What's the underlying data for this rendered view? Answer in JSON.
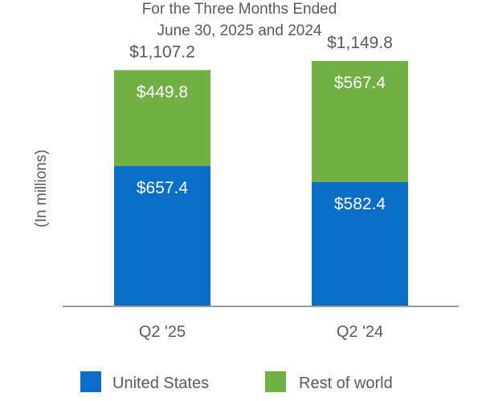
{
  "chart_data": {
    "type": "bar",
    "stacked": true,
    "title_lines": [
      "For the Three Months Ended",
      "June 30, 2025 and 2024"
    ],
    "ylabel": "(In millions)",
    "xlabel": "",
    "categories": [
      "Q2 '25",
      "Q2 '24"
    ],
    "totals": [
      "$1,107.2",
      "$1,149.8"
    ],
    "ylim": [
      0,
      1180
    ],
    "series": [
      {
        "name": "United States",
        "color": "#0a6ec6",
        "values": [
          657.4,
          582.4
        ],
        "labels": [
          "$657.4",
          "$582.4"
        ]
      },
      {
        "name": "Rest of world",
        "color": "#72af44",
        "values": [
          449.8,
          567.4
        ],
        "labels": [
          "$449.8",
          "$567.4"
        ]
      }
    ],
    "axis_color": "#9a9a9a",
    "legend_position": "bottom"
  }
}
